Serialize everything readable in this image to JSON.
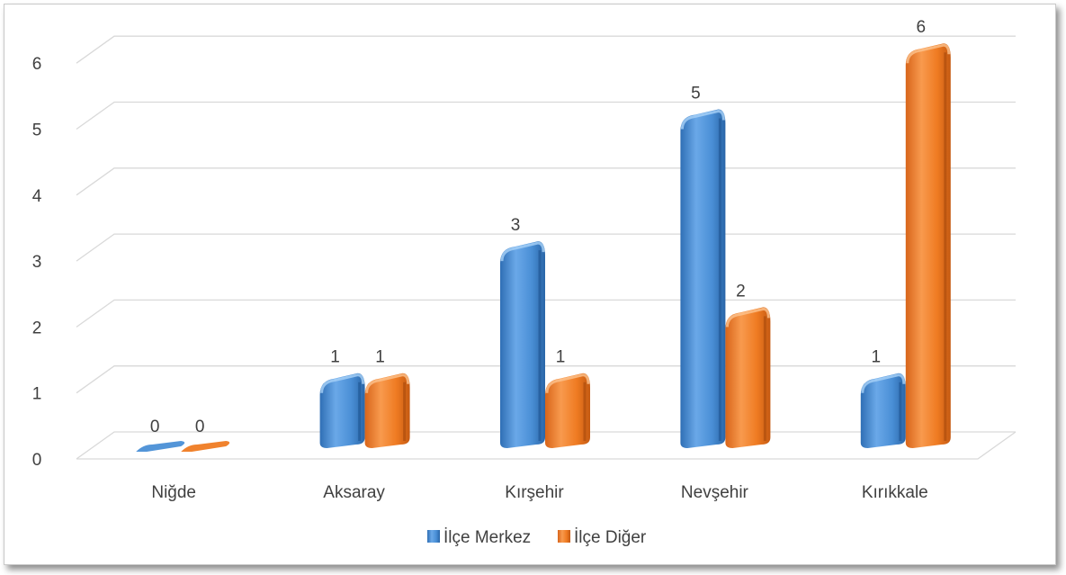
{
  "chart_data": {
    "type": "bar",
    "categories": [
      "Niğde",
      "Aksaray",
      "Kırşehir",
      "Nevşehir",
      "Kırıkkale"
    ],
    "series": [
      {
        "name": "İlçe Merkez",
        "values": [
          0,
          1,
          3,
          5,
          1
        ],
        "color": "#4a8fd6"
      },
      {
        "name": "İlçe Diğer",
        "values": [
          0,
          1,
          1,
          2,
          6
        ],
        "color": "#ef7b22"
      }
    ],
    "yticks": [
      "0",
      "1",
      "2",
      "3",
      "4",
      "5",
      "6"
    ],
    "ylim": [
      0,
      6
    ],
    "grid": true,
    "legend": "bottom",
    "style": "3d-cylinder"
  }
}
